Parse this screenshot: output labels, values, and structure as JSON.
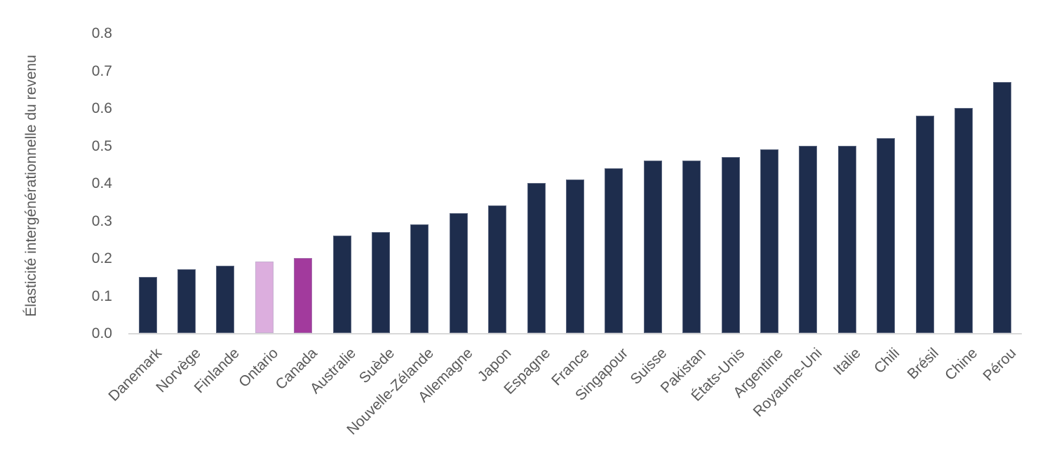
{
  "chart_data": {
    "type": "bar",
    "title": "",
    "xlabel": "",
    "ylabel": "Élasticité intergénérationnelle du revenu",
    "categories": [
      "Danemark",
      "Norvège",
      "Finlande",
      "Ontario",
      "Canada",
      "Australie",
      "Suède",
      "Nouvelle-Zélande",
      "Allemagne",
      "Japon",
      "Espagne",
      "France",
      "Singapour",
      "Suisse",
      "Pakistan",
      "États-Unis",
      "Argentine",
      "Royaume-Uni",
      "Italie",
      "Chili",
      "Brésil",
      "Chine",
      "Pérou"
    ],
    "values": [
      0.15,
      0.17,
      0.18,
      0.19,
      0.2,
      0.26,
      0.27,
      0.29,
      0.32,
      0.34,
      0.4,
      0.41,
      0.44,
      0.46,
      0.46,
      0.47,
      0.49,
      0.5,
      0.5,
      0.52,
      0.58,
      0.6,
      0.67
    ],
    "bar_colors": [
      "#1E2D4D",
      "#1E2D4D",
      "#1E2D4D",
      "#DCAEDE",
      "#A23A9D",
      "#1E2D4D",
      "#1E2D4D",
      "#1E2D4D",
      "#1E2D4D",
      "#1E2D4D",
      "#1E2D4D",
      "#1E2D4D",
      "#1E2D4D",
      "#1E2D4D",
      "#1E2D4D",
      "#1E2D4D",
      "#1E2D4D",
      "#1E2D4D",
      "#1E2D4D",
      "#1E2D4D",
      "#1E2D4D",
      "#1E2D4D",
      "#1E2D4D"
    ],
    "highlighted_bars": {
      "Ontario": "#DCAEDE",
      "Canada": "#A23A9D"
    },
    "yticks": [
      "0.0",
      "0.1",
      "0.2",
      "0.3",
      "0.4",
      "0.5",
      "0.6",
      "0.7",
      "0.8"
    ],
    "ytick_values": [
      0.0,
      0.1,
      0.2,
      0.3,
      0.4,
      0.5,
      0.6,
      0.7,
      0.8
    ],
    "ylim": [
      0.0,
      0.8
    ],
    "grid": false,
    "legend": "none",
    "x_label_rotation_deg": 45,
    "colors": {
      "default_bar": "#1E2D4D",
      "axis_line": "#D9D9D9",
      "axis_text": "#595959",
      "background": "#FFFFFF"
    }
  }
}
